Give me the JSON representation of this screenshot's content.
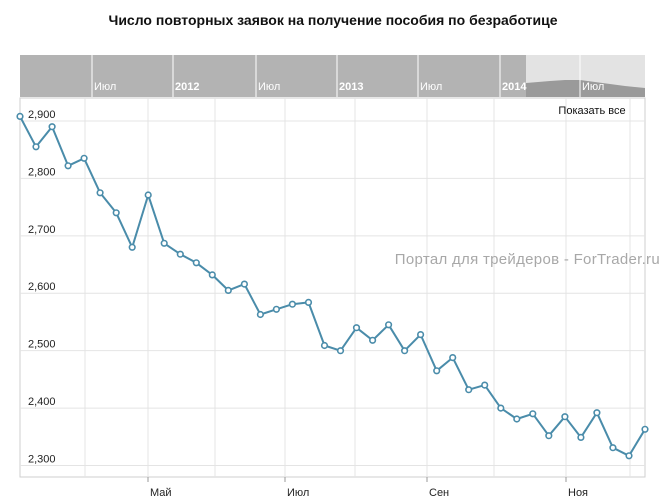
{
  "title": "Число повторных заявок на получение пособия по безработице",
  "navigator": {
    "labels": [
      "Июл",
      "2012",
      "Июл",
      "2013",
      "Июл",
      "2014",
      "Июл"
    ],
    "bold": [
      false,
      true,
      false,
      true,
      false,
      true,
      false
    ]
  },
  "show_all_label": "Показать все",
  "watermark": "Портал для трейдеров - ForTrader.ru",
  "colors": {
    "line": "#4a8caa",
    "nav_bg": "#b3b3b3",
    "nav_selected": "#e3e3e3",
    "grid": "#e4e4e4"
  },
  "chart_data": {
    "type": "line",
    "x_tick_labels": [
      "Май",
      "Июл",
      "Сен",
      "Ноя"
    ],
    "y_tick_labels": [
      "2,900",
      "2,800",
      "2,700",
      "2,600",
      "2,500",
      "2,400",
      "2,300"
    ],
    "y_ticks": [
      2900,
      2800,
      2700,
      2600,
      2500,
      2400,
      2300
    ],
    "ylim": [
      2280,
      2940
    ],
    "grid": true,
    "values": [
      2908,
      2855,
      2890,
      2822,
      2835,
      2775,
      2740,
      2680,
      2771,
      2687,
      2668,
      2653,
      2632,
      2605,
      2616,
      2563,
      2572,
      2581,
      2584,
      2509,
      2500,
      2540,
      2518,
      2545,
      2500,
      2528,
      2465,
      2488,
      2432,
      2440,
      2400,
      2381,
      2390,
      2352,
      2385,
      2349,
      2392,
      2331,
      2317,
      2363
    ]
  }
}
